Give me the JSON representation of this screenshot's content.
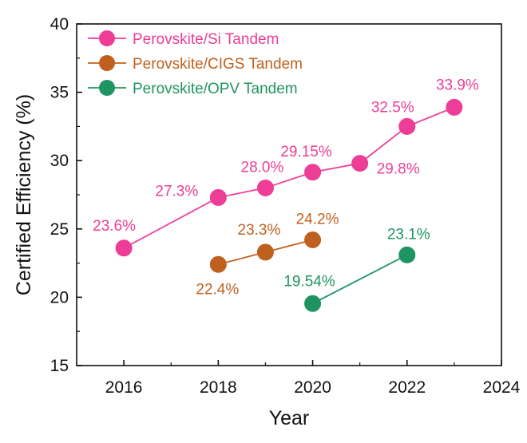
{
  "chart_data": {
    "type": "line",
    "xlabel": "Year",
    "ylabel": "Certified Efficiency (%)",
    "xlim": [
      2015,
      2024
    ],
    "ylim": [
      15,
      40
    ],
    "xticks": [
      2016,
      2018,
      2020,
      2022,
      2024
    ],
    "yticks": [
      15,
      20,
      25,
      30,
      35,
      40
    ],
    "legend_position": "top-left",
    "series": [
      {
        "name": "Perovskite/Si Tandem",
        "color": "#ee3d96",
        "points": [
          {
            "x": 2016,
            "y": 23.6,
            "label": "23.6%"
          },
          {
            "x": 2018,
            "y": 27.3,
            "label": "27.3%"
          },
          {
            "x": 2019,
            "y": 28.0,
            "label": "28.0%"
          },
          {
            "x": 2020,
            "y": 29.15,
            "label": "29.15%"
          },
          {
            "x": 2021,
            "y": 29.8,
            "label": "29.8%"
          },
          {
            "x": 2022,
            "y": 32.5,
            "label": "32.5%"
          },
          {
            "x": 2023,
            "y": 33.9,
            "label": "33.9%"
          }
        ]
      },
      {
        "name": "Perovskite/CIGS Tandem",
        "color": "#c0601e",
        "points": [
          {
            "x": 2018,
            "y": 22.4,
            "label": "22.4%"
          },
          {
            "x": 2019,
            "y": 23.3,
            "label": "23.3%"
          },
          {
            "x": 2020,
            "y": 24.2,
            "label": "24.2%"
          }
        ]
      },
      {
        "name": "Perovskite/OPV Tandem",
        "color": "#1e9460",
        "points": [
          {
            "x": 2020,
            "y": 19.54,
            "label": "19.54%"
          },
          {
            "x": 2022,
            "y": 23.1,
            "label": "23.1%"
          }
        ]
      }
    ]
  }
}
